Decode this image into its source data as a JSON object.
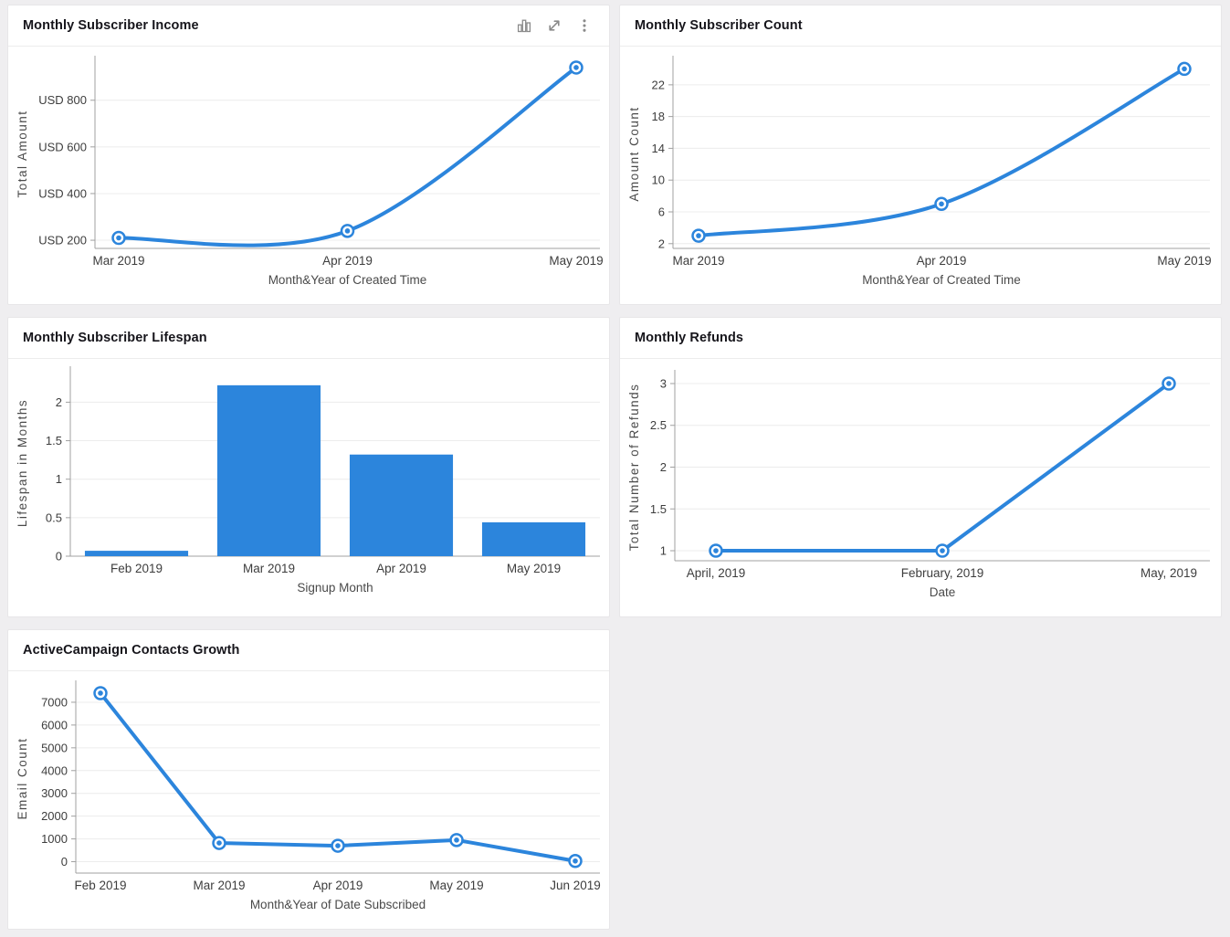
{
  "page": {
    "background": "#efeef0"
  },
  "accent_color": "#2c85dc",
  "panels": [
    {
      "title": "Monthly Subscriber Income",
      "toolbar": {
        "icons": [
          "column-chart-icon",
          "expand-icon",
          "more-options-icon"
        ]
      }
    },
    {
      "title": "Monthly Subscriber Count"
    },
    {
      "title": "Monthly Subscriber Lifespan"
    },
    {
      "title": "Monthly Refunds"
    },
    {
      "title": "ActiveCampaign Contacts Growth"
    }
  ],
  "chart_data": [
    {
      "type": "line",
      "panel_title": "Monthly Subscriber Income",
      "categories": [
        "Mar 2019",
        "Apr 2019",
        "May 2019"
      ],
      "values": [
        210,
        240,
        940
      ],
      "xlabel": "Month&Year of Created Time",
      "ylabel": "Total Amount",
      "yticks": [
        200,
        400,
        600,
        800
      ],
      "ytick_labels": [
        "USD 200",
        "USD 400",
        "USD 600",
        "USD 800"
      ],
      "ylim": [
        165,
        975
      ],
      "grid": true,
      "smooth": true,
      "markers": true,
      "layout": {
        "margins": {
          "l": 95,
          "r": 10,
          "t": 14,
          "b": 60
        },
        "point_inset": 26
      }
    },
    {
      "type": "line",
      "panel_title": "Monthly Subscriber Count",
      "categories": [
        "Mar 2019",
        "Apr 2019",
        "May 2019"
      ],
      "values": [
        3,
        7,
        24
      ],
      "xlabel": "Month&Year of Created Time",
      "ylabel": "Amount Count",
      "yticks": [
        2,
        6,
        10,
        14,
        18,
        22
      ],
      "ytick_labels": [
        "2",
        "6",
        "10",
        "14",
        "18",
        "22"
      ],
      "ylim": [
        1.4,
        25.2
      ],
      "grid": true,
      "smooth": true,
      "markers": true,
      "layout": {
        "margins": {
          "l": 58,
          "r": 12,
          "t": 14,
          "b": 60
        },
        "point_inset": 28
      }
    },
    {
      "type": "bar",
      "panel_title": "Monthly Subscriber Lifespan",
      "categories": [
        "Feb 2019",
        "Mar 2019",
        "Apr 2019",
        "May 2019"
      ],
      "values": [
        0.07,
        2.22,
        1.32,
        0.44
      ],
      "xlabel": "Signup Month",
      "ylabel": "Lifespan in Months",
      "yticks": [
        0,
        0.5,
        1,
        1.5,
        2
      ],
      "ytick_labels": [
        "0",
        "0.5",
        "1",
        "1.5",
        "2"
      ],
      "ylim": [
        0,
        2.42
      ],
      "grid": true,
      "bar_band_ratio": 0.78,
      "layout": {
        "margins": {
          "l": 68,
          "r": 10,
          "t": 12,
          "b": 65
        }
      }
    },
    {
      "type": "line",
      "panel_title": "Monthly Refunds",
      "categories": [
        "April, 2019",
        "February, 2019",
        "May, 2019"
      ],
      "values": [
        1,
        1,
        3
      ],
      "xlabel": "Date",
      "ylabel": "Total Number of Refunds",
      "yticks": [
        1,
        1.5,
        2,
        2.5,
        3
      ],
      "ytick_labels": [
        "1",
        "1.5",
        "2",
        "2.5",
        "3"
      ],
      "ylim": [
        0.88,
        3.12
      ],
      "grid": true,
      "smooth": false,
      "markers": true,
      "layout": {
        "margins": {
          "l": 60,
          "r": 12,
          "t": 16,
          "b": 60
        },
        "point_inset": 45
      }
    },
    {
      "type": "line",
      "panel_title": "ActiveCampaign Contacts Growth",
      "categories": [
        "Feb 2019",
        "Mar 2019",
        "Apr 2019",
        "May 2019",
        "Jun 2019"
      ],
      "values": [
        7400,
        820,
        700,
        950,
        30
      ],
      "xlabel": "Month&Year of Date Subscribed",
      "ylabel": "Email Count",
      "yticks": [
        0,
        1000,
        2000,
        3000,
        4000,
        5000,
        6000,
        7000
      ],
      "ytick_labels": [
        "0",
        "1000",
        "2000",
        "3000",
        "4000",
        "5000",
        "6000",
        "7000"
      ],
      "ylim": [
        -500,
        7800
      ],
      "grid": true,
      "smooth": false,
      "markers": true,
      "layout": {
        "margins": {
          "l": 74,
          "r": 10,
          "t": 14,
          "b": 60
        },
        "point_inset": 27
      }
    }
  ],
  "chart_style": {
    "grid_color": "#ececec",
    "axis_color": "#a0a0a0",
    "tick_text_color": "#3d3d3d",
    "axis_title_color": "#4a4a4a",
    "icon_color": "#8a8a8a"
  }
}
